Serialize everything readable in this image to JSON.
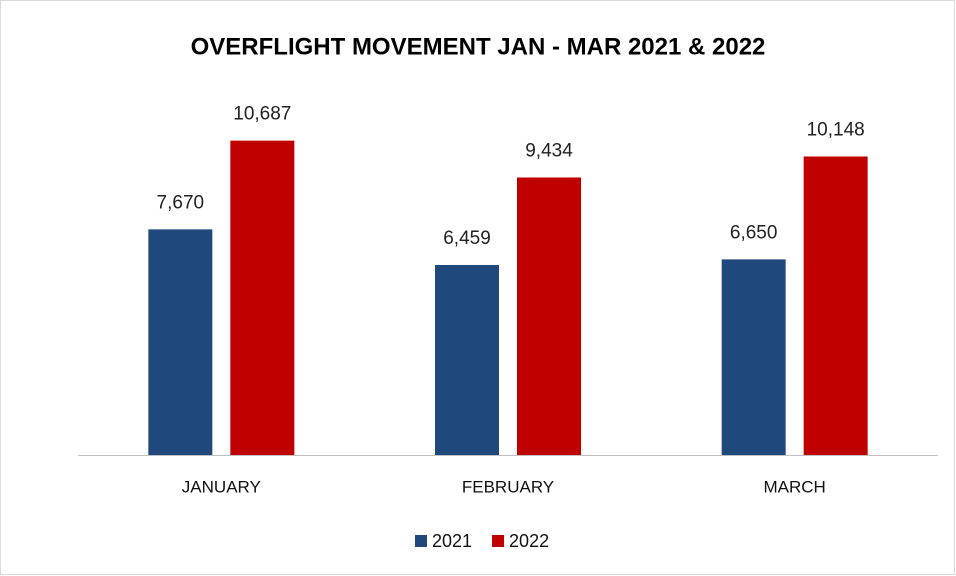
{
  "chart_data": {
    "type": "bar",
    "title": "OVERFLIGHT MOVEMENT JAN - MAR 2021 & 2022",
    "categories": [
      "JANUARY",
      "FEBRUARY",
      "MARCH"
    ],
    "series": [
      {
        "name": "2021",
        "color": "#1f497d",
        "values": [
          7670,
          6459,
          6650
        ],
        "value_labels": [
          "7,670",
          "6,459",
          "6,650"
        ]
      },
      {
        "name": "2022",
        "color": "#c00000",
        "values": [
          10687,
          9434,
          10148
        ],
        "value_labels": [
          "10,687",
          "9,434",
          "10,148"
        ]
      }
    ],
    "ylim": [
      0,
      12000
    ],
    "legend": "bottom"
  }
}
